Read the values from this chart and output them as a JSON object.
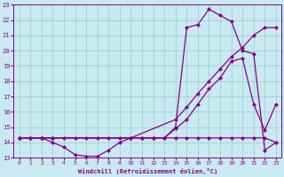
{
  "line1_x": [
    0,
    1,
    2,
    3,
    4,
    5,
    6,
    7,
    8,
    9,
    10,
    11,
    12,
    13,
    14,
    15,
    16,
    17,
    18,
    19,
    20,
    21,
    22,
    23
  ],
  "line1_y": [
    14.3,
    14.3,
    14.3,
    14.3,
    14.3,
    14.3,
    14.3,
    14.3,
    14.3,
    14.3,
    14.3,
    14.3,
    14.3,
    14.3,
    14.3,
    14.3,
    14.3,
    14.3,
    14.3,
    14.3,
    14.3,
    14.3,
    14.3,
    14.0
  ],
  "line2_x": [
    0,
    1,
    2,
    3,
    4,
    5,
    6,
    7,
    8,
    9,
    10,
    11,
    12,
    13,
    14,
    15,
    16,
    17,
    18,
    19,
    20,
    21,
    22,
    23
  ],
  "line2_y": [
    14.3,
    14.3,
    14.3,
    14.0,
    13.7,
    13.2,
    13.1,
    13.1,
    13.5,
    14.0,
    14.3,
    14.3,
    14.3,
    14.3,
    14.9,
    15.5,
    16.5,
    17.5,
    18.2,
    19.3,
    19.5,
    16.5,
    14.8,
    16.5
  ],
  "line3_x": [
    0,
    1,
    2,
    3,
    10,
    14,
    15,
    16,
    17,
    18,
    19,
    20,
    21,
    22,
    23
  ],
  "line3_y": [
    14.3,
    14.3,
    14.3,
    14.3,
    14.3,
    15.5,
    16.3,
    17.2,
    18.0,
    18.8,
    19.6,
    20.2,
    21.0,
    21.5,
    21.5
  ],
  "line4_x": [
    0,
    1,
    2,
    3,
    10,
    11,
    12,
    13,
    14,
    15,
    16,
    17,
    18,
    19,
    20,
    21,
    22,
    23
  ],
  "line4_y": [
    14.3,
    14.3,
    14.3,
    14.3,
    14.3,
    14.3,
    14.3,
    14.3,
    15.0,
    21.5,
    21.7,
    22.7,
    22.3,
    21.9,
    20.0,
    19.8,
    13.5,
    14.0
  ],
  "color": "#880088",
  "bg_color": "#c8eaf0",
  "grid_color": "#99cccc",
  "xlabel": "Windchill (Refroidissement éolien,°C)",
  "ylim": [
    13,
    23
  ],
  "xlim": [
    -0.5,
    23.5
  ],
  "yticks": [
    13,
    14,
    15,
    16,
    17,
    18,
    19,
    20,
    21,
    22,
    23
  ],
  "xticks": [
    0,
    1,
    2,
    3,
    4,
    5,
    6,
    7,
    8,
    9,
    10,
    11,
    12,
    13,
    14,
    15,
    16,
    17,
    18,
    19,
    20,
    21,
    22,
    23
  ]
}
